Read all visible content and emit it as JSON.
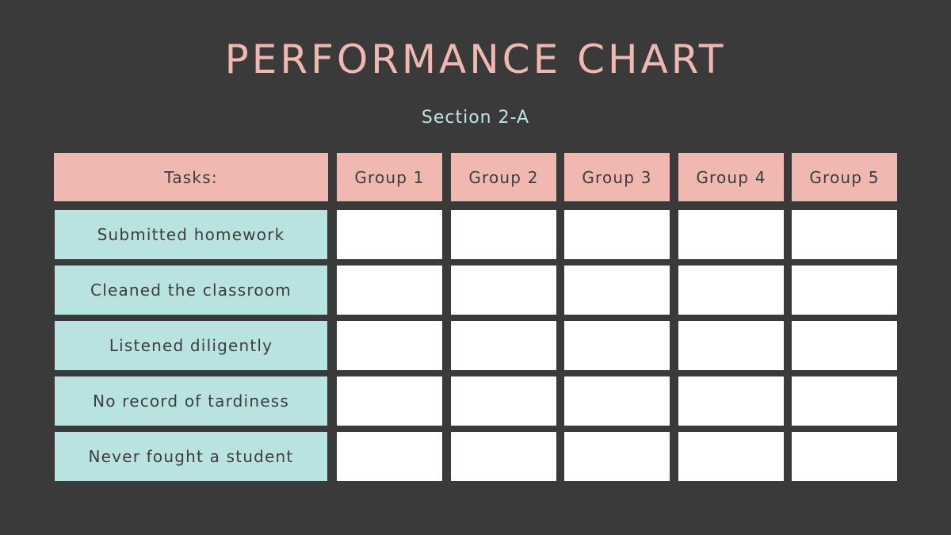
{
  "header": {
    "title": "PERFORMANCE CHART",
    "subtitle": "Section 2-A"
  },
  "table": {
    "corner_label": "Tasks:",
    "groups": [
      "Group 1",
      "Group 2",
      "Group 3",
      "Group 4",
      "Group 5"
    ],
    "tasks": [
      "Submitted homework",
      "Cleaned the classroom",
      "Listened diligently",
      "No record of tardiness",
      "Never fought a student"
    ],
    "cells": [
      [
        "",
        "",
        "",
        "",
        ""
      ],
      [
        "",
        "",
        "",
        "",
        ""
      ],
      [
        "",
        "",
        "",
        "",
        ""
      ],
      [
        "",
        "",
        "",
        "",
        ""
      ],
      [
        "",
        "",
        "",
        "",
        ""
      ]
    ]
  },
  "colors": {
    "background": "#3a3a3a",
    "header_fill": "#efb8b0",
    "task_fill": "#b9e3e1",
    "cell_fill": "#ffffff",
    "title_color": "#efb8b0",
    "subtitle_color": "#bfe4e2"
  }
}
